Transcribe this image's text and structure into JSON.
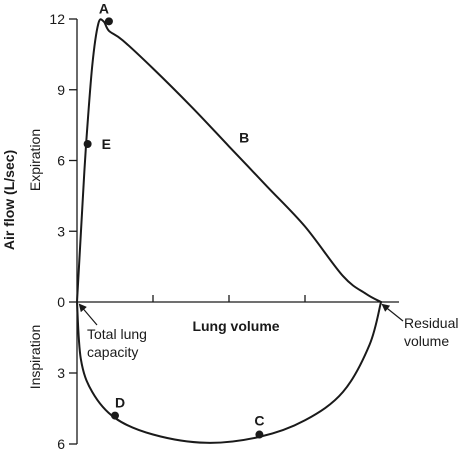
{
  "chart_data": {
    "type": "line",
    "title": "",
    "ylabel": "Air flow (L/sec)",
    "xlabel": "Lung volume",
    "y_region_labels": {
      "upper": "Expiration",
      "lower": "Inspiration"
    },
    "y_ticks": [
      {
        "value": 12,
        "label": "12"
      },
      {
        "value": 9,
        "label": "9"
      },
      {
        "value": 6,
        "label": "6"
      },
      {
        "value": 3,
        "label": "3"
      },
      {
        "value": 0,
        "label": "0"
      },
      {
        "value": -3,
        "label": "3"
      },
      {
        "value": -6,
        "label": "6"
      }
    ],
    "ylim": [
      -6,
      12
    ],
    "xlim": [
      0,
      4
    ],
    "x_ticks": [
      1,
      2,
      3
    ],
    "grid": false,
    "series": [
      {
        "segment": "expiration",
        "x": [
          0,
          0.07,
          0.12,
          0.2,
          0.28,
          0.35,
          0.42,
          0.6,
          1.0,
          1.5,
          2.0,
          2.5,
          3.0,
          3.5,
          3.8,
          4.0
        ],
        "y": [
          0,
          4.0,
          6.7,
          10.0,
          11.8,
          11.9,
          11.5,
          11.1,
          9.9,
          8.3,
          6.6,
          4.9,
          3.2,
          1.1,
          0.35,
          0
        ]
      },
      {
        "segment": "inspiration",
        "x": [
          0,
          0.05,
          0.2,
          0.5,
          1.0,
          1.7,
          2.4,
          3.0,
          3.5,
          3.85,
          4.0
        ],
        "y": [
          0,
          -2.4,
          -3.8,
          -4.9,
          -5.6,
          -5.95,
          -5.7,
          -5.0,
          -3.8,
          -1.8,
          0
        ]
      }
    ],
    "points": [
      {
        "label": "A",
        "x": 0.42,
        "y": 11.9
      },
      {
        "label": "B",
        "x": 2.2,
        "y": 6.5
      },
      {
        "label": "C",
        "x": 2.4,
        "y": -5.6
      },
      {
        "label": "D",
        "x": 0.5,
        "y": -4.8
      },
      {
        "label": "E",
        "x": 0.14,
        "y": 6.7
      }
    ],
    "annotations": [
      {
        "id": "tlc",
        "lines": [
          "Total lung",
          "capacity"
        ],
        "x": 0,
        "y": 0
      },
      {
        "id": "rv",
        "lines": [
          "Residual",
          "volume"
        ],
        "x": 4.0,
        "y": 0
      }
    ]
  }
}
